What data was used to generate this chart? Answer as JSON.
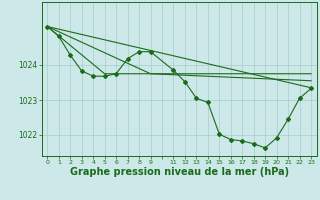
{
  "background_color": "#cce8e8",
  "grid_color": "#aacccc",
  "line_color": "#1a6b1a",
  "xlabel": "Graphe pression niveau de la mer (hPa)",
  "xlabel_fontsize": 7,
  "ylim": [
    1021.4,
    1025.8
  ],
  "xlim": [
    -0.5,
    23.5
  ],
  "ytick_vals": [
    1022,
    1023,
    1024
  ],
  "ytick_fontsize": 5.5,
  "xtick_vals": [
    0,
    1,
    2,
    3,
    4,
    5,
    6,
    7,
    8,
    9,
    10,
    11,
    12,
    13,
    14,
    15,
    16,
    17,
    18,
    19,
    20,
    21,
    22,
    23
  ],
  "xtick_labels": [
    "0",
    "1",
    "2",
    "3",
    "4",
    "5",
    "6",
    "7",
    "8",
    "9",
    "",
    "11",
    "12",
    "13",
    "14",
    "15",
    "16",
    "17",
    "18",
    "19",
    "20",
    "21",
    "22",
    "23"
  ],
  "xtick_fontsize": 4.5,
  "line1": {
    "x": [
      0,
      23
    ],
    "y": [
      1025.1,
      1023.35
    ]
  },
  "line2": {
    "x": [
      0,
      9,
      23
    ],
    "y": [
      1025.1,
      1023.75,
      1023.55
    ]
  },
  "line3": {
    "x": [
      0,
      5,
      23
    ],
    "y": [
      1025.1,
      1023.75,
      1023.75
    ]
  },
  "measured_x": [
    0,
    1,
    2,
    3,
    4,
    5,
    6,
    7,
    8,
    9,
    11,
    12,
    13,
    14,
    15,
    16,
    17,
    18,
    19,
    20,
    21,
    22,
    23
  ],
  "measured_y": [
    1025.1,
    1024.82,
    1024.28,
    1023.83,
    1023.68,
    1023.68,
    1023.75,
    1024.18,
    1024.38,
    1024.38,
    1023.85,
    1023.52,
    1023.05,
    1022.93,
    1022.02,
    1021.87,
    1021.83,
    1021.75,
    1021.63,
    1021.92,
    1022.45,
    1023.05,
    1023.33
  ]
}
